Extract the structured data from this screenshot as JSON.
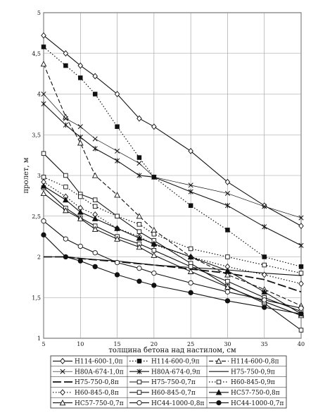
{
  "chart_data": {
    "type": "line",
    "xlabel": "толщина бетона над настилом, см",
    "ylabel": "пролет, м",
    "xlim": [
      5,
      40
    ],
    "ylim": [
      1,
      5
    ],
    "x_ticks": [
      5,
      10,
      15,
      20,
      25,
      30,
      35,
      40
    ],
    "y_ticks": [
      1,
      1.5,
      2,
      2.5,
      3,
      3.5,
      4,
      4.5,
      5
    ],
    "grid": "horizontal and vertical",
    "legend_position": "bottom",
    "series": [
      {
        "name": "Н114-600-1,0п",
        "line": "solid",
        "marker": "diamond-open",
        "x": [
          5,
          8,
          10,
          12,
          15,
          18,
          20,
          25,
          30,
          35,
          40
        ],
        "y": [
          4.72,
          4.5,
          4.35,
          4.22,
          4.0,
          3.7,
          3.6,
          3.3,
          2.92,
          2.63,
          2.38
        ]
      },
      {
        "name": "Н114-600-0,9п",
        "line": "dotted",
        "marker": "square-filled",
        "x": [
          5,
          8,
          10,
          12,
          15,
          18,
          20,
          25,
          30,
          35,
          40
        ],
        "y": [
          4.58,
          4.35,
          4.2,
          4.0,
          3.6,
          3.22,
          2.98,
          2.63,
          2.33,
          2.0,
          1.88
        ]
      },
      {
        "name": "Н114-600-0,8п",
        "line": "dashed",
        "marker": "triangle-open",
        "x": [
          5,
          8,
          10,
          12,
          15,
          18,
          20,
          25,
          30,
          35,
          40
        ],
        "y": [
          4.37,
          3.72,
          3.4,
          3.0,
          2.76,
          2.5,
          2.33,
          2.0,
          1.78,
          1.6,
          1.4
        ]
      },
      {
        "name": "Н80А-674-1,0п",
        "line": "thin-solid",
        "marker": "x",
        "x": [
          5,
          8,
          10,
          12,
          15,
          18,
          20,
          25,
          30,
          35,
          40
        ],
        "y": [
          4.0,
          3.7,
          3.6,
          3.45,
          3.3,
          3.15,
          2.98,
          2.88,
          2.78,
          2.62,
          2.48
        ]
      },
      {
        "name": "Н80А-674-0,9п",
        "line": "solid",
        "marker": "asterisk",
        "x": [
          5,
          8,
          10,
          12,
          15,
          18,
          20,
          25,
          30,
          35,
          40
        ],
        "y": [
          3.88,
          3.62,
          3.47,
          3.33,
          3.18,
          3.0,
          2.98,
          2.8,
          2.63,
          2.37,
          2.14
        ]
      },
      {
        "name": "Н75-750-0,9п",
        "line": "solid",
        "marker": "none",
        "x": [
          5,
          8,
          10,
          15,
          20,
          25,
          30,
          35,
          40
        ],
        "y": [
          2.0,
          2.0,
          1.98,
          1.95,
          1.9,
          1.87,
          1.84,
          1.8,
          1.77
        ]
      },
      {
        "name": "Н75-750-0,8п",
        "line": "long-dash",
        "marker": "none",
        "x": [
          5,
          8,
          10,
          15,
          20,
          25,
          30,
          35,
          40
        ],
        "y": [
          2.0,
          2.0,
          1.98,
          1.94,
          1.9,
          1.85,
          1.8,
          1.72,
          1.57
        ]
      },
      {
        "name": "Н75-750-0,7п",
        "line": "solid",
        "marker": "square-open",
        "x": [
          5,
          8,
          10,
          12,
          15,
          18,
          20,
          25,
          30,
          35,
          40
        ],
        "y": [
          3.27,
          3.0,
          2.77,
          2.7,
          2.5,
          2.31,
          2.2,
          1.92,
          1.64,
          1.43,
          1.1
        ]
      },
      {
        "name": "Н60-845-0,9п",
        "line": "dotted",
        "marker": "square-open",
        "x": [
          5,
          8,
          10,
          12,
          15,
          18,
          20,
          25,
          30,
          35,
          40
        ],
        "y": [
          2.98,
          2.86,
          2.74,
          2.62,
          2.5,
          2.4,
          2.28,
          2.1,
          2.0,
          1.9,
          1.8
        ]
      },
      {
        "name": "Н60-845-0,8п",
        "line": "dotted",
        "marker": "diamond-open",
        "x": [
          5,
          8,
          10,
          12,
          15,
          18,
          20,
          25,
          30,
          35,
          40
        ],
        "y": [
          2.92,
          2.74,
          2.6,
          2.52,
          2.35,
          2.25,
          2.15,
          2.0,
          1.88,
          1.78,
          1.67
        ]
      },
      {
        "name": "Н60-845-0,7п",
        "line": "solid",
        "marker": "square-open",
        "x": [
          5,
          8,
          10,
          12,
          15,
          18,
          20,
          25,
          30,
          35,
          40
        ],
        "y": [
          2.85,
          2.6,
          2.48,
          2.38,
          2.25,
          2.16,
          2.08,
          1.88,
          1.7,
          1.5,
          1.33
        ]
      },
      {
        "name": "НС57-750-0,8п",
        "line": "solid",
        "marker": "triangle-filled",
        "x": [
          5,
          8,
          10,
          12,
          15,
          18,
          20,
          25,
          30,
          35,
          40
        ],
        "y": [
          2.87,
          2.7,
          2.55,
          2.47,
          2.35,
          2.23,
          2.16,
          2.0,
          1.83,
          1.57,
          1.3
        ]
      },
      {
        "name": "НС57-750-0,7п",
        "line": "solid",
        "marker": "triangle-open",
        "x": [
          5,
          8,
          10,
          12,
          15,
          18,
          20,
          25,
          30,
          35,
          40
        ],
        "y": [
          2.78,
          2.57,
          2.47,
          2.34,
          2.22,
          2.12,
          2.02,
          1.82,
          1.63,
          1.45,
          1.28
        ]
      },
      {
        "name": "НС44-1000-0,8п",
        "line": "solid",
        "marker": "circle-open",
        "x": [
          5,
          8,
          10,
          12,
          15,
          18,
          20,
          25,
          30,
          35,
          40
        ],
        "y": [
          2.44,
          2.22,
          2.13,
          2.05,
          1.93,
          1.86,
          1.8,
          1.68,
          1.57,
          1.47,
          1.37
        ]
      },
      {
        "name": "НС44-1000-0,7п",
        "line": "solid",
        "marker": "circle-filled",
        "x": [
          5,
          8,
          10,
          12,
          15,
          18,
          20,
          25,
          30,
          35,
          40
        ],
        "y": [
          2.27,
          2.0,
          1.95,
          1.88,
          1.78,
          1.7,
          1.65,
          1.56,
          1.46,
          1.38,
          1.3
        ]
      }
    ]
  }
}
